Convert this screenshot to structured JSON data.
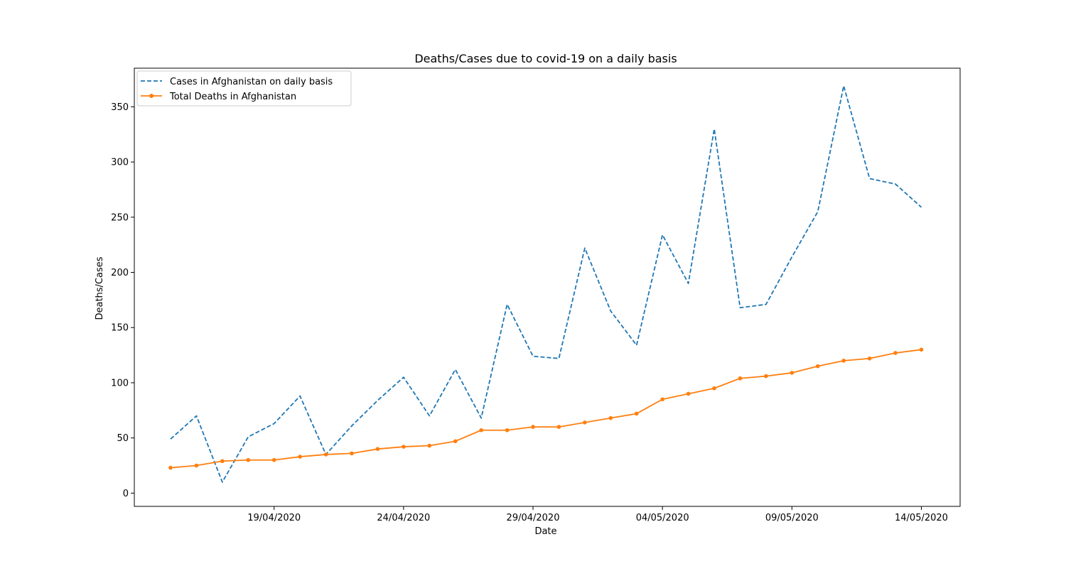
{
  "chart_data": {
    "type": "line",
    "title": "Deaths/Cases due to covid-19 on a daily basis",
    "xlabel": "Date",
    "ylabel": "Deaths/Cases",
    "x": [
      "15/04/2020",
      "16/04/2020",
      "17/04/2020",
      "18/04/2020",
      "19/04/2020",
      "20/04/2020",
      "21/04/2020",
      "22/04/2020",
      "23/04/2020",
      "24/04/2020",
      "25/04/2020",
      "26/04/2020",
      "27/04/2020",
      "28/04/2020",
      "29/04/2020",
      "30/04/2020",
      "01/05/2020",
      "02/05/2020",
      "03/05/2020",
      "04/05/2020",
      "05/05/2020",
      "06/05/2020",
      "07/05/2020",
      "08/05/2020",
      "09/05/2020",
      "10/05/2020",
      "11/05/2020",
      "12/05/2020",
      "13/05/2020",
      "14/05/2020"
    ],
    "x_tick_labels": [
      "19/04/2020",
      "24/04/2020",
      "29/04/2020",
      "04/05/2020",
      "09/05/2020",
      "14/05/2020"
    ],
    "x_tick_indices": [
      4,
      9,
      14,
      19,
      24,
      29
    ],
    "y_ticks": [
      0,
      50,
      100,
      150,
      200,
      250,
      300,
      350
    ],
    "ylim": [
      -12,
      385
    ],
    "legend_position": "upper-left",
    "grid": false,
    "series": [
      {
        "name": "Cases in Afghanistan on daily basis",
        "color": "#1f77b4",
        "style": "dashed",
        "values": [
          49,
          70,
          10,
          51,
          63,
          88,
          35,
          61,
          84,
          105,
          70,
          112,
          68,
          171,
          124,
          122,
          222,
          165,
          134,
          234,
          190,
          330,
          168,
          171,
          214,
          255,
          369,
          285,
          280,
          259
        ]
      },
      {
        "name": "Total Deaths in Afghanistan",
        "color": "#ff7f0e",
        "style": "solid-markers",
        "values": [
          23,
          25,
          29,
          30,
          30,
          33,
          35,
          36,
          40,
          42,
          43,
          47,
          57,
          57,
          60,
          60,
          64,
          68,
          72,
          85,
          90,
          95,
          104,
          106,
          109,
          115,
          120,
          122,
          127,
          130
        ]
      }
    ]
  }
}
